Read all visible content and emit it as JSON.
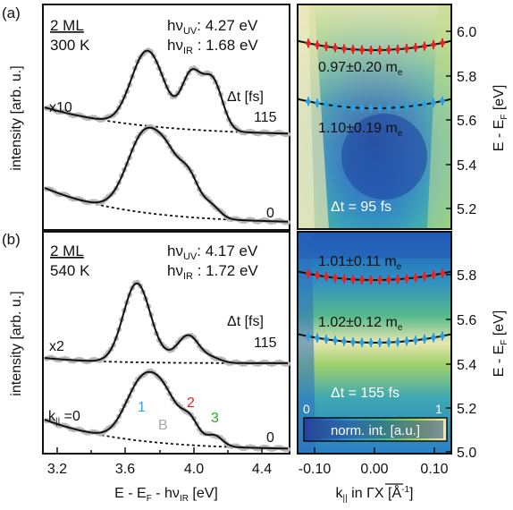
{
  "figure": {
    "colors": {
      "blue": "#29a7e5",
      "gray": "#a8a8a8",
      "red": "#e62222",
      "green": "#1bb21b",
      "black": "#111111",
      "data_marker": "#b8b8b8"
    },
    "left_panels": {
      "ylabel": "intensity [arb. u.]",
      "xlabel": "E - E",
      "xlabel_sub": "F",
      "xlabel_tail": " - hν",
      "xlabel_sub2": "IR",
      "xlabel_unit": " [eV]",
      "x_ticks": [
        "3.2",
        "3.6",
        "4.0",
        "4.4"
      ]
    },
    "right_panels": {
      "xlabel": "k",
      "xlabel_sub": "||",
      "xlabel_mid": " in ΓX [Å",
      "xlabel_sup": "-1",
      "xlabel_end": "]",
      "x_ticks": [
        "-0.10",
        "0.00",
        "0.10"
      ],
      "ylabel": "E - E",
      "ylabel_sub": "F",
      "ylabel_unit": " [eV]"
    },
    "panel_a": {
      "tag": "(a)",
      "coverage": "2 ML",
      "temperature": "300 K",
      "hv_uv_label": "hν",
      "hv_uv_sub": "UV",
      "hv_uv_value": ": 4.27 eV",
      "hv_ir_label": "hν",
      "hv_ir_sub": "IR",
      "hv_ir_value": " : 1.68 eV",
      "scale": "x10",
      "dt_label": "Δt [fs]",
      "dt_upper": "115",
      "dt_lower": "0",
      "map_y_ticks": [
        "6.0",
        "5.8",
        "5.6",
        "5.4",
        "5.2"
      ],
      "mass_upper": "0.97±0.20 m",
      "mass_upper_sub": "e",
      "mass_lower": "1.10±0.19 m",
      "mass_lower_sub": "e",
      "map_dt": "Δt = 95 fs"
    },
    "panel_b": {
      "tag": "(b)",
      "coverage": "2 ML",
      "temperature": "540 K",
      "hv_uv_label": "hν",
      "hv_uv_sub": "UV",
      "hv_uv_value": ": 4.17 eV",
      "hv_ir_label": "hν",
      "hv_ir_sub": "IR",
      "hv_ir_value": " : 1.72 eV",
      "scale": "x2",
      "dt_label": "Δt [fs]",
      "dt_upper": "115",
      "dt_lower": "0",
      "k_label": "k",
      "k_sub": "||",
      "k_value": " =0",
      "peak_1": "1",
      "peak_B": "B",
      "peak_2": "2",
      "peak_3": "3",
      "map_y_ticks": [
        "5.8",
        "5.6",
        "5.4",
        "5.2",
        "5.0"
      ],
      "mass_upper": "1.01±0.11 m",
      "mass_upper_sub": "e",
      "mass_lower": "1.02±0.12 m",
      "mass_lower_sub": "e",
      "map_dt": "Δt = 155 fs",
      "colorbar_min": "0",
      "colorbar_max": "1",
      "colorbar_label": "norm. int. [a.u.]"
    }
  }
}
